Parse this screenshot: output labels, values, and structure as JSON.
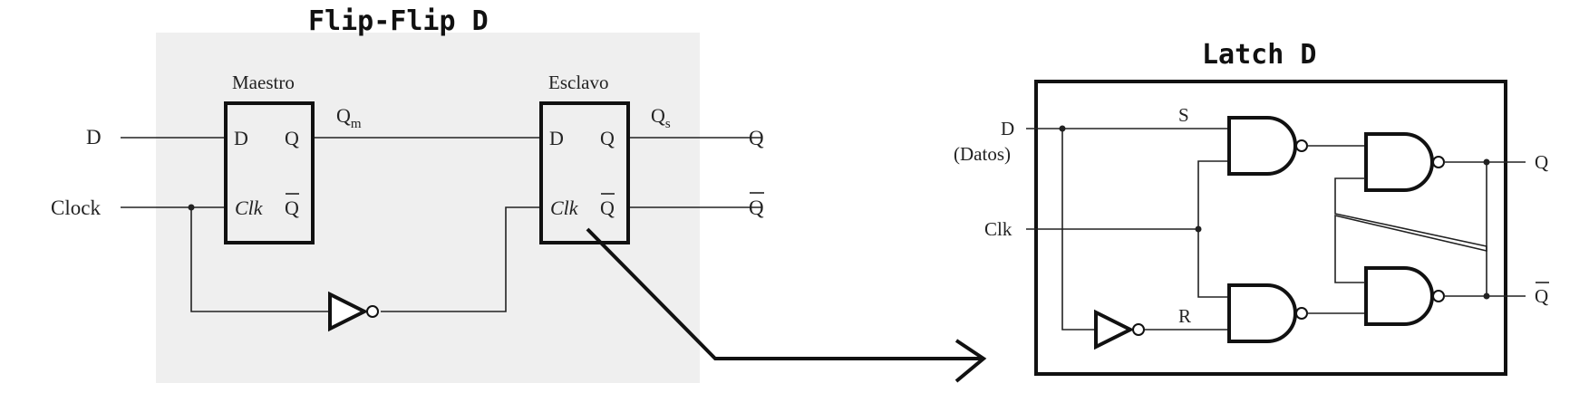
{
  "diagram": {
    "flipflop": {
      "title": "Flip-Flip D",
      "input_d": "D",
      "input_clock": "Clock",
      "output_q": "Q",
      "output_qbar": "Q",
      "master": {
        "title": "Maestro",
        "pin_d": "D",
        "pin_q": "Q",
        "pin_clk": "Clk",
        "pin_qbar": "Q"
      },
      "slave": {
        "title": "Esclavo",
        "pin_d": "D",
        "pin_q": "Q",
        "pin_clk": "Clk",
        "pin_qbar": "Q"
      },
      "qm": {
        "base": "Q",
        "sub": "m"
      },
      "qs": {
        "base": "Q",
        "sub": "s"
      }
    },
    "latch": {
      "title": "Latch D",
      "input_d": "D",
      "input_d_note": "(Datos)",
      "input_clk": "Clk",
      "label_s": "S",
      "label_r": "R",
      "output_q": "Q",
      "output_qbar": "Q"
    },
    "colors": {
      "panel": "#efefef",
      "ink": "#111111"
    }
  }
}
